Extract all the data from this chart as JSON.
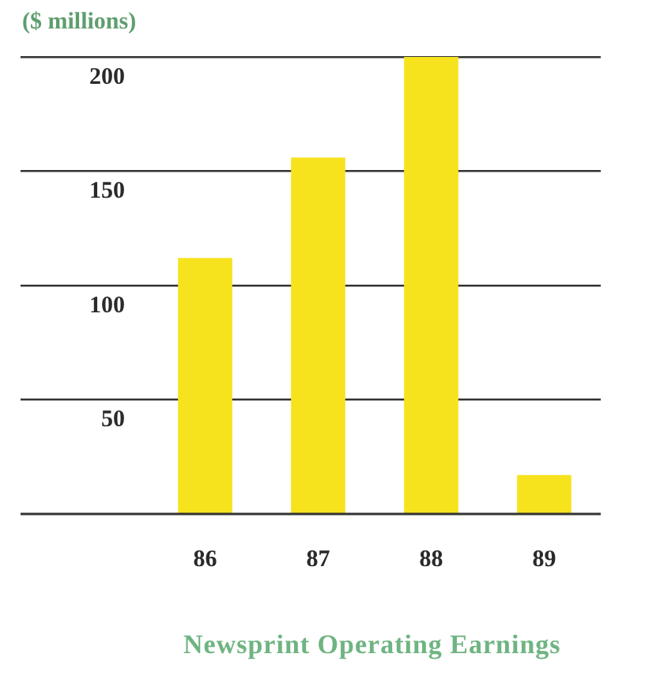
{
  "chart_data": {
    "type": "bar",
    "title": "Newsprint Operating Earnings",
    "ylabel": "($ millions)",
    "categories": [
      "86",
      "87",
      "88",
      "89"
    ],
    "values": [
      112,
      156,
      200,
      17
    ],
    "color": "#f7e21e",
    "ylim": [
      0,
      200
    ],
    "yticks": [
      50,
      100,
      150,
      200
    ],
    "grid": "y",
    "legend": false
  }
}
